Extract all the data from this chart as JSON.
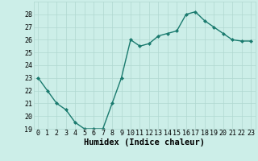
{
  "x": [
    0,
    1,
    2,
    3,
    4,
    5,
    6,
    7,
    8,
    9,
    10,
    11,
    12,
    13,
    14,
    15,
    16,
    17,
    18,
    19,
    20,
    21,
    22,
    23
  ],
  "y": [
    23.0,
    22.0,
    21.0,
    20.5,
    19.5,
    19.0,
    19.0,
    19.0,
    21.0,
    23.0,
    26.0,
    25.5,
    25.7,
    26.3,
    26.5,
    26.7,
    28.0,
    28.2,
    27.5,
    27.0,
    26.5,
    26.0,
    25.9,
    25.9
  ],
  "xlabel": "Humidex (Indice chaleur)",
  "ylim": [
    19,
    29
  ],
  "xlim": [
    -0.5,
    23.5
  ],
  "yticks": [
    19,
    20,
    21,
    22,
    23,
    24,
    25,
    26,
    27,
    28
  ],
  "xtick_labels": [
    "0",
    "1",
    "2",
    "3",
    "4",
    "5",
    "6",
    "7",
    "8",
    "9",
    "10",
    "11",
    "12",
    "13",
    "14",
    "15",
    "16",
    "17",
    "18",
    "19",
    "20",
    "21",
    "22",
    "23"
  ],
  "line_color": "#1a7a6e",
  "marker": "D",
  "marker_size": 2.0,
  "bg_color": "#cceee8",
  "grid_color": "#b0d8d0",
  "line_width": 1.0,
  "tick_fontsize": 6.0,
  "xlabel_fontsize": 7.5
}
